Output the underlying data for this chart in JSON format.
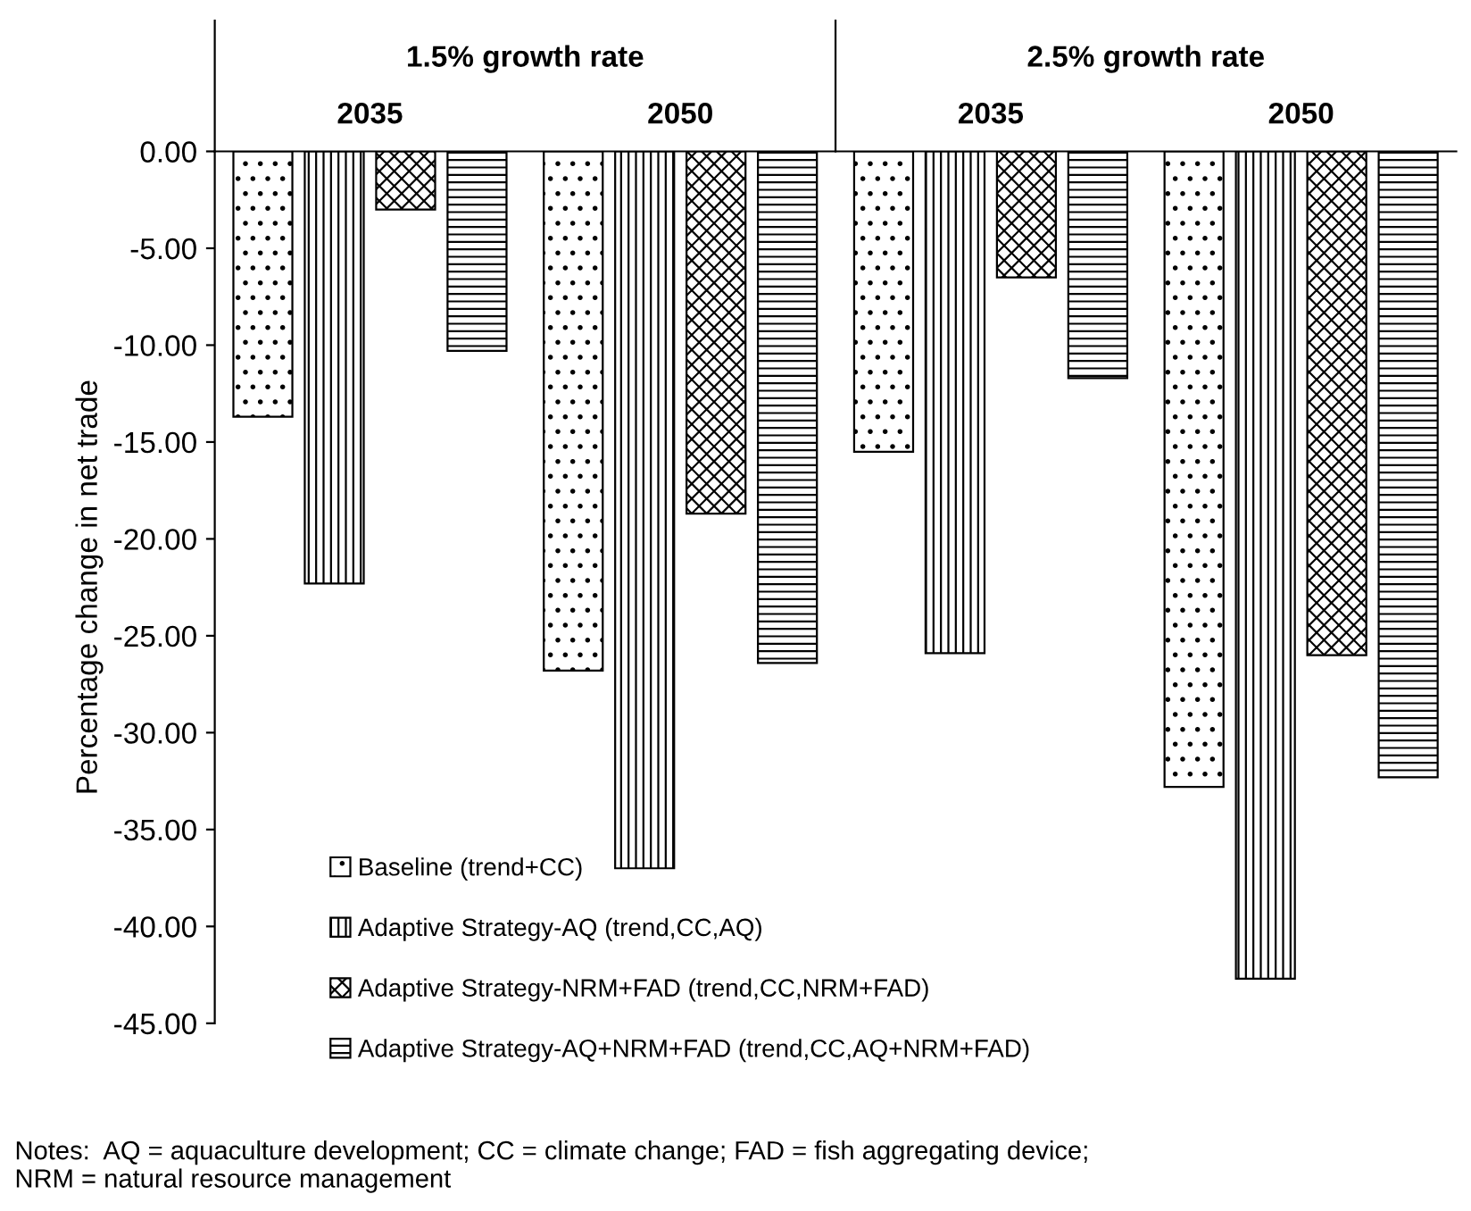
{
  "chart_data": {
    "type": "bar",
    "ylabel": "Percentage change in net trade",
    "categories": [
      "2035",
      "2050",
      "2035",
      "2050"
    ],
    "series": [
      {
        "name": "Baseline (trend+CC)",
        "color": "#000000",
        "values": [
          -13.7,
          -26.8,
          -15.5,
          -32.8
        ]
      },
      {
        "name": "Adaptive Strategy-AQ (trend,CC,AQ)",
        "color": "#000000",
        "values": [
          -22.3,
          -37.0,
          -25.9,
          -42.7
        ]
      },
      {
        "name": "Adaptive Strategy-NRM+FAD (trend,CC,NRM+FAD)",
        "color": "#000000",
        "values": [
          -3.0,
          -18.7,
          -6.5,
          -26.0
        ]
      },
      {
        "name": "Adaptive Strategy-AQ+NRM+FAD (trend,CC,AQ+NRM+FAD)",
        "color": "#000000",
        "values": [
          -10.3,
          -26.4,
          -11.7,
          -32.3
        ]
      }
    ],
    "ylim": [
      -45,
      0
    ],
    "yticks": [
      {
        "value": 0,
        "label": "0.00"
      },
      {
        "value": -5,
        "label": "-5.00"
      },
      {
        "value": -10,
        "label": "-10.00"
      },
      {
        "value": -15,
        "label": "-15.00"
      },
      {
        "value": -20,
        "label": "-20.00"
      },
      {
        "value": -25,
        "label": "-25.00"
      },
      {
        "value": -30,
        "label": "-30.00"
      },
      {
        "value": -35,
        "label": "-35.00"
      },
      {
        "value": -40,
        "label": "-40.00"
      },
      {
        "value": -45,
        "label": "-45.00"
      }
    ],
    "grid": false,
    "legend": "bottom",
    "annotations": [
      "1.5% growth rate",
      "2.5% growth rate",
      "Notes:  AQ = aquaculture development; CC = climate change; FAD = fish aggregating device;\nNRM = natural resource management"
    ]
  }
}
